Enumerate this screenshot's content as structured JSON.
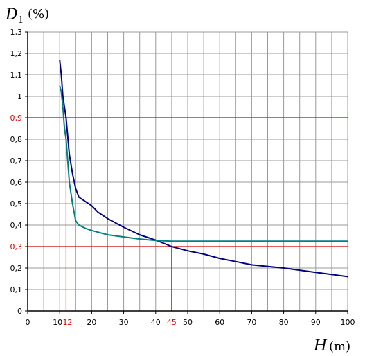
{
  "chart_data": {
    "type": "line",
    "ylabel": {
      "symbol": "D",
      "subscript": "1",
      "unit": "(%)"
    },
    "xlabel": {
      "symbol": "H",
      "unit": "(m)"
    },
    "xlim": [
      0,
      100
    ],
    "ylim": [
      0,
      1.3
    ],
    "x_ticks": [
      "0",
      "10",
      "20",
      "30",
      "40",
      "50",
      "60",
      "70",
      "80",
      "90",
      "100"
    ],
    "y_ticks": [
      "0",
      "0,1",
      "0,2",
      "0,3",
      "0,4",
      "0,5",
      "0,6",
      "0,7",
      "0,8",
      "0,9",
      "1",
      "1,1",
      "1,2",
      "1,3"
    ],
    "y_tick_values": [
      0,
      0.1,
      0.2,
      0.3,
      0.4,
      0.5,
      0.6,
      0.7,
      0.8,
      0.9,
      1.0,
      1.1,
      1.2,
      1.3
    ],
    "grid": true,
    "series": [
      {
        "color": "#000080",
        "points": [
          [
            10.0,
            1.17
          ],
          [
            10.5,
            1.1
          ],
          [
            11.0,
            1.0
          ],
          [
            12.0,
            0.9
          ],
          [
            13.0,
            0.73
          ],
          [
            14.0,
            0.64
          ],
          [
            15.0,
            0.57
          ],
          [
            16.0,
            0.53
          ],
          [
            18.0,
            0.51
          ],
          [
            20.0,
            0.49
          ],
          [
            22.0,
            0.46
          ],
          [
            25.0,
            0.43
          ],
          [
            30.0,
            0.39
          ],
          [
            35.0,
            0.355
          ],
          [
            40.0,
            0.33
          ],
          [
            45.0,
            0.3
          ],
          [
            50.0,
            0.28
          ],
          [
            55.0,
            0.265
          ],
          [
            60.0,
            0.245
          ],
          [
            65.0,
            0.23
          ],
          [
            70.0,
            0.215
          ],
          [
            80.0,
            0.2
          ],
          [
            90.0,
            0.18
          ],
          [
            95.0,
            0.17
          ],
          [
            100.0,
            0.16
          ]
        ]
      },
      {
        "color": "#008080",
        "points": [
          [
            10.0,
            1.05
          ],
          [
            10.5,
            1.02
          ],
          [
            11.0,
            0.95
          ],
          [
            11.5,
            0.85
          ],
          [
            12.0,
            0.8
          ],
          [
            12.5,
            0.7
          ],
          [
            13.0,
            0.6
          ],
          [
            14.0,
            0.5
          ],
          [
            15.0,
            0.42
          ],
          [
            16.0,
            0.4
          ],
          [
            18.0,
            0.385
          ],
          [
            20.0,
            0.375
          ],
          [
            25.0,
            0.355
          ],
          [
            30.0,
            0.345
          ],
          [
            35.0,
            0.335
          ],
          [
            40.0,
            0.328
          ],
          [
            45.0,
            0.325
          ],
          [
            50.0,
            0.325
          ],
          [
            60.0,
            0.325
          ],
          [
            70.0,
            0.325
          ],
          [
            80.0,
            0.325
          ],
          [
            90.0,
            0.325
          ],
          [
            100.0,
            0.325
          ]
        ]
      }
    ],
    "reference_lines": [
      {
        "label_y": "0,9",
        "y": 0.9,
        "label_x": "12",
        "x": 12,
        "color": "#d00000"
      },
      {
        "label_y": "0,3",
        "y": 0.3,
        "label_x": "45",
        "x": 45,
        "color": "#d00000"
      }
    ],
    "red_y_labels": [
      "0,9",
      "0,3"
    ],
    "red_x_labels": [
      "12",
      "45"
    ]
  }
}
